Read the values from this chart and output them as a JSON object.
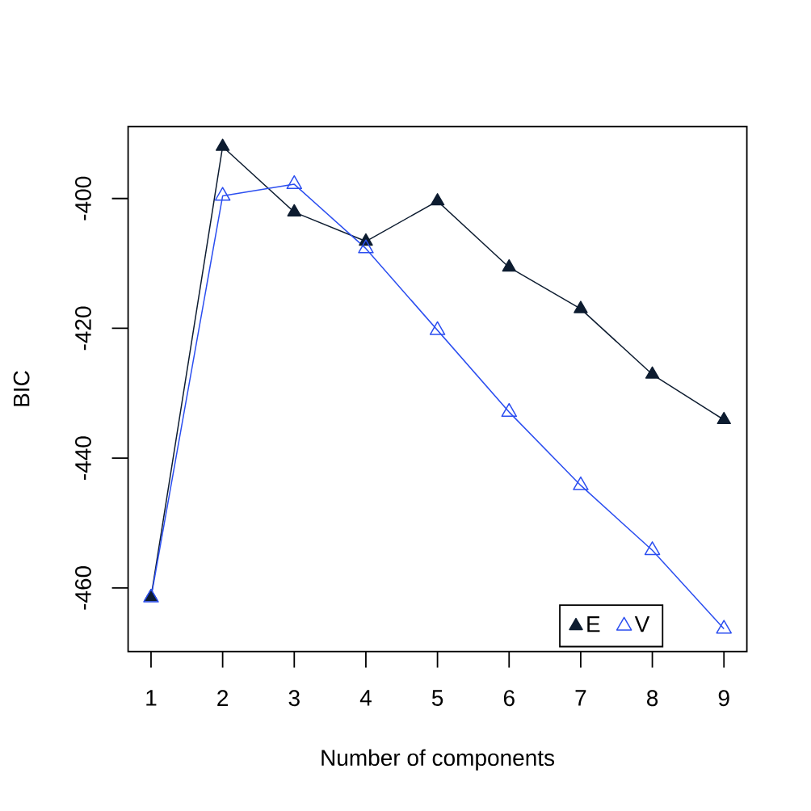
{
  "chart_data": {
    "type": "line",
    "xlabel": "Number of components",
    "ylabel": "BIC",
    "x": [
      1,
      2,
      3,
      4,
      5,
      6,
      7,
      8,
      9
    ],
    "series": [
      {
        "name": "E",
        "color": "#0d1c30",
        "values": [
          -461.4,
          -392.0,
          -402.1,
          -406.6,
          -400.4,
          -410.6,
          -417.0,
          -427.1,
          -434.1
        ]
      },
      {
        "name": "V",
        "color": "#2b4ef0",
        "values": [
          -461.5,
          -399.6,
          -397.8,
          -407.7,
          -420.3,
          -432.9,
          -444.2,
          -454.2,
          -466.3
        ]
      }
    ],
    "xlim": [
      0.68,
      9.32
    ],
    "ylim": [
      -469.8,
      -388.9
    ],
    "xticks": [
      1,
      2,
      3,
      4,
      5,
      6,
      7,
      8,
      9
    ],
    "yticks": [
      -460,
      -440,
      -420,
      -400
    ],
    "marker": "triangle",
    "legend": "bottom right"
  }
}
